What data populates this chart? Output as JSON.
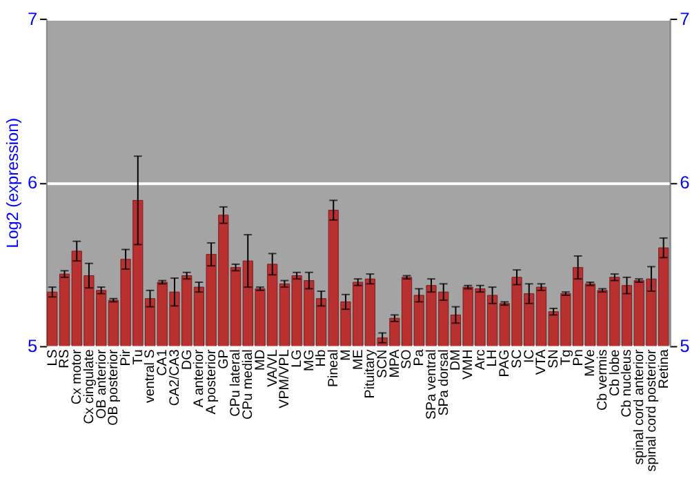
{
  "chart_data": {
    "type": "bar",
    "ylabel": "Log2 (expression)",
    "categories": [
      "LS",
      "RS",
      "Cx motor",
      "Cx cingulate",
      "OB anterior",
      "OB posterior",
      "Pir",
      "Tu",
      "ventral S",
      "CA1",
      "CA2/CA3",
      "DG",
      "A anterior",
      "A posterior",
      "GP",
      "CPu lateral",
      "CPu medial",
      "MD",
      "VA/VL",
      "VPM/VPL",
      "LG",
      "MG",
      "Hb",
      "Pineal",
      "M",
      "ME",
      "Pituitary",
      "SCN",
      "MPA",
      "SO",
      "Pa",
      "SPa ventral",
      "SPa dorsal",
      "DM",
      "VMH",
      "Arc",
      "LH",
      "PAG",
      "SC",
      "IC",
      "VTA",
      "SN",
      "Tg",
      "Pn",
      "MVe",
      "Cb vermis",
      "Cb lobe",
      "Cb nucleus",
      "spinal cord anterior",
      "spinal cord posterior",
      "Retina"
    ],
    "values": [
      5.33,
      5.44,
      5.58,
      5.43,
      5.34,
      5.28,
      5.53,
      5.89,
      5.29,
      5.39,
      5.33,
      5.43,
      5.36,
      5.56,
      5.8,
      5.48,
      5.52,
      5.35,
      5.5,
      5.38,
      5.43,
      5.4,
      5.29,
      5.83,
      5.27,
      5.39,
      5.41,
      5.05,
      5.17,
      5.42,
      5.31,
      5.37,
      5.33,
      5.19,
      5.36,
      5.35,
      5.31,
      5.26,
      5.42,
      5.32,
      5.36,
      5.21,
      5.32,
      5.48,
      5.38,
      5.34,
      5.42,
      5.37,
      5.4,
      5.41,
      5.6
    ],
    "errors": [
      0.03,
      0.02,
      0.06,
      0.075,
      0.02,
      0.01,
      0.06,
      0.27,
      0.05,
      0.01,
      0.085,
      0.02,
      0.03,
      0.07,
      0.05,
      0.02,
      0.16,
      0.01,
      0.065,
      0.02,
      0.02,
      0.05,
      0.045,
      0.06,
      0.045,
      0.02,
      0.03,
      0.03,
      0.02,
      0.01,
      0.04,
      0.04,
      0.05,
      0.05,
      0.01,
      0.02,
      0.05,
      0.01,
      0.045,
      0.06,
      0.02,
      0.02,
      0.01,
      0.07,
      0.01,
      0.01,
      0.02,
      0.05,
      0.01,
      0.075,
      0.06
    ],
    "color": "#b83030",
    "ylim": [
      5,
      7
    ],
    "yticks": [
      5,
      6,
      7
    ],
    "y2lim": [
      5,
      7
    ],
    "y2ticks": [
      5,
      6,
      7
    ],
    "grid": "y"
  }
}
